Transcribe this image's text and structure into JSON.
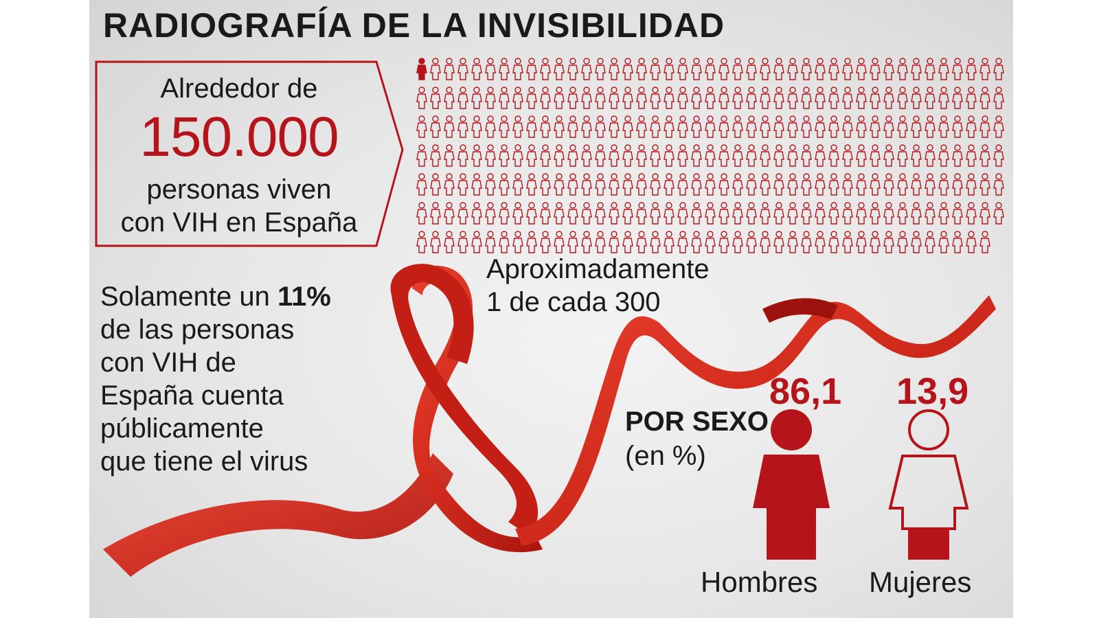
{
  "title": "RADIOGRAFÍA DE LA INVISIBILIDAD",
  "callout": {
    "line1": "Alrededor de",
    "number": "150.000",
    "line2": "personas viven",
    "line3": "con VIH en España"
  },
  "ratio": {
    "line1": "Aproximadamente",
    "line2": "1 de cada 300",
    "highlighted": 1,
    "total": 300
  },
  "public": {
    "prefix": "Solamente un ",
    "percent": "11%",
    "lines": [
      "de las personas",
      "con VIH de",
      "España cuenta",
      "públicamente",
      "que tiene el virus"
    ]
  },
  "by_sex": {
    "heading": "POR SEXO",
    "unit": "(en %)",
    "men": {
      "value": "86,1",
      "label": "Hombres"
    },
    "women": {
      "value": "13,9",
      "label": "Mujeres"
    }
  },
  "colors": {
    "accent": "#b5141b",
    "ribbon": "#d62a1e",
    "text": "#1a1a1a"
  },
  "icons": {
    "person": "person-icon",
    "ribbon": "red-ribbon-icon"
  }
}
